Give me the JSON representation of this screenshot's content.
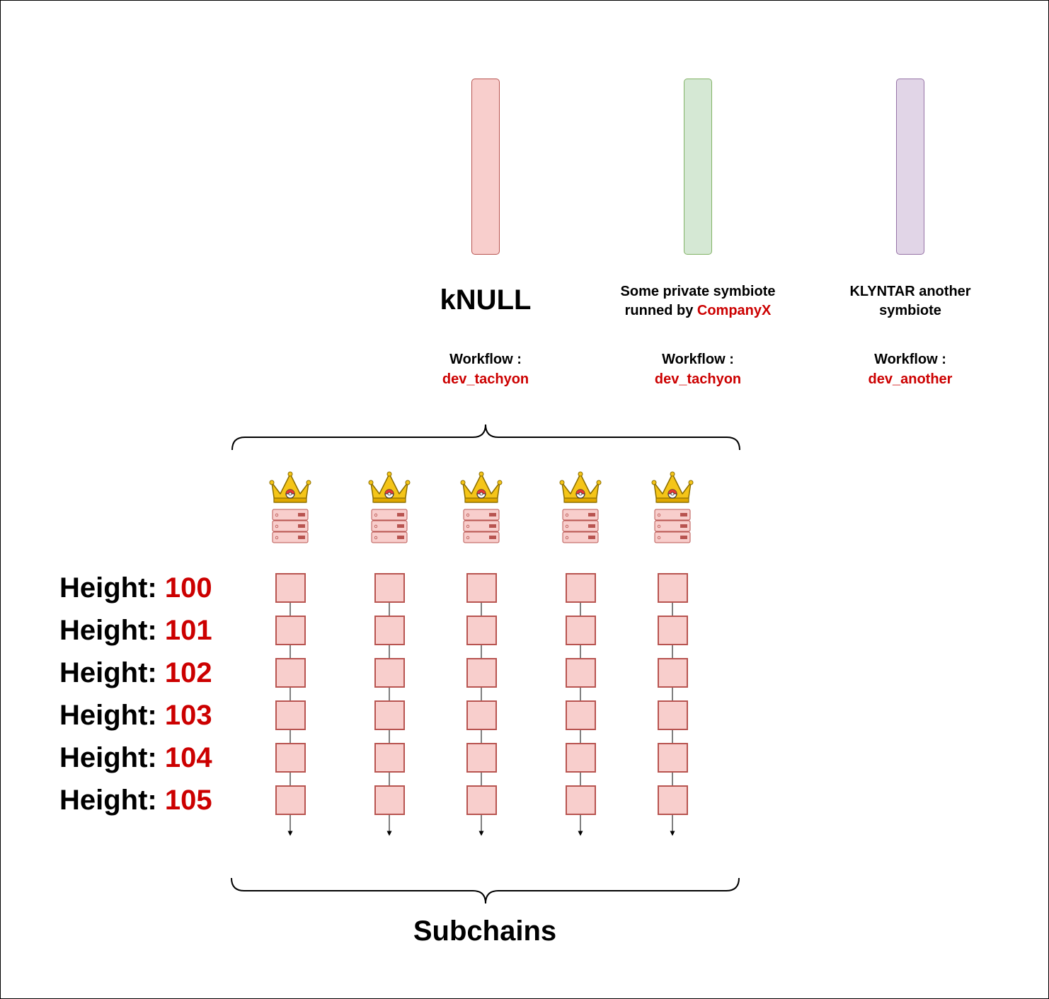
{
  "symbiotes": [
    {
      "title": "kNULL",
      "title_parts": null,
      "workflow_label": "Workflow :",
      "workflow": "dev_tachyon",
      "fill": "#f8cecc",
      "stroke": "#b85450"
    },
    {
      "title": null,
      "title_line1": "Some private symbiote",
      "title_line2_prefix": "runned by ",
      "title_line2_highlight": "CompanyX",
      "workflow_label": "Workflow :",
      "workflow": "dev_tachyon",
      "fill": "#d5e8d4",
      "stroke": "#82b366"
    },
    {
      "title": null,
      "title_line1": "KLYNTAR another",
      "title_line2": "symbiote",
      "workflow_label": "Workflow :",
      "workflow": "dev_another",
      "fill": "#e1d5e7",
      "stroke": "#9673a6"
    }
  ],
  "heights": {
    "label": "Height: ",
    "values": [
      "100",
      "101",
      "102",
      "103",
      "104",
      "105"
    ]
  },
  "subchains": {
    "caption": "Subchains",
    "count": 5,
    "blocks_per_chain": 6,
    "block_fill": "#f8cecc",
    "block_stroke": "#b85450"
  },
  "icons": [
    "crown-icon",
    "server-rack-icon"
  ],
  "colors": {
    "accent_red": "#cc0000"
  }
}
